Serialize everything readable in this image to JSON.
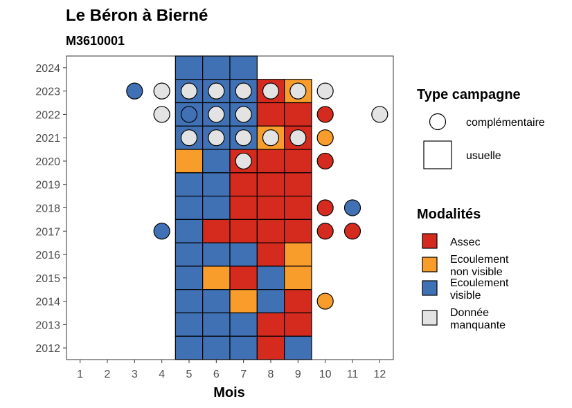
{
  "chart_data": {
    "type": "heatmap",
    "title": "Le Béron à Bierné",
    "subtitle": "M3610001",
    "xlabel": "Mois",
    "ylabel": "",
    "x_ticks": [
      1,
      2,
      3,
      4,
      5,
      6,
      7,
      8,
      9,
      10,
      11,
      12
    ],
    "y_ticks": [
      2012,
      2013,
      2014,
      2015,
      2016,
      2017,
      2018,
      2019,
      2020,
      2021,
      2022,
      2023,
      2024
    ],
    "xlim": [
      0.5,
      12.5
    ],
    "ylim": [
      2011.5,
      2024.5
    ],
    "grid": false,
    "colors": {
      "Assec": "#d52b1e",
      "Ecoulement non visible": "#f89c2c",
      "Ecoulement visible": "#4171b5",
      "Donnée manquante": "#e3e3e3"
    },
    "legend": {
      "position": "right",
      "shape_title": "Type campagne",
      "shape_entries": [
        {
          "shape": "circle",
          "label": "complémentaire"
        },
        {
          "shape": "square",
          "label": "usuelle"
        }
      ],
      "fill_title": "Modalités",
      "fill_entries": [
        {
          "key": "Assec",
          "lines": [
            "Assec"
          ]
        },
        {
          "key": "Ecoulement non visible",
          "lines": [
            "Ecoulement",
            "non visible"
          ]
        },
        {
          "key": "Ecoulement visible",
          "lines": [
            "Ecoulement",
            "visible"
          ]
        },
        {
          "key": "Donnée manquante",
          "lines": [
            "Donnée",
            "manquante"
          ]
        }
      ]
    },
    "usuelle": [
      {
        "year": 2024,
        "month": 5,
        "value": "Ecoulement visible"
      },
      {
        "year": 2024,
        "month": 6,
        "value": "Ecoulement visible"
      },
      {
        "year": 2024,
        "month": 7,
        "value": "Ecoulement visible"
      },
      {
        "year": 2023,
        "month": 5,
        "value": "Ecoulement visible"
      },
      {
        "year": 2023,
        "month": 6,
        "value": "Ecoulement visible"
      },
      {
        "year": 2023,
        "month": 7,
        "value": "Ecoulement visible"
      },
      {
        "year": 2023,
        "month": 8,
        "value": "Assec"
      },
      {
        "year": 2023,
        "month": 9,
        "value": "Ecoulement non visible"
      },
      {
        "year": 2022,
        "month": 5,
        "value": "Ecoulement visible"
      },
      {
        "year": 2022,
        "month": 6,
        "value": "Ecoulement visible"
      },
      {
        "year": 2022,
        "month": 7,
        "value": "Ecoulement visible"
      },
      {
        "year": 2022,
        "month": 8,
        "value": "Assec"
      },
      {
        "year": 2022,
        "month": 9,
        "value": "Assec"
      },
      {
        "year": 2021,
        "month": 5,
        "value": "Ecoulement visible"
      },
      {
        "year": 2021,
        "month": 6,
        "value": "Ecoulement visible"
      },
      {
        "year": 2021,
        "month": 7,
        "value": "Ecoulement visible"
      },
      {
        "year": 2021,
        "month": 8,
        "value": "Ecoulement non visible"
      },
      {
        "year": 2021,
        "month": 9,
        "value": "Assec"
      },
      {
        "year": 2020,
        "month": 5,
        "value": "Ecoulement non visible"
      },
      {
        "year": 2020,
        "month": 6,
        "value": "Ecoulement visible"
      },
      {
        "year": 2020,
        "month": 7,
        "value": "Assec"
      },
      {
        "year": 2020,
        "month": 8,
        "value": "Assec"
      },
      {
        "year": 2020,
        "month": 9,
        "value": "Assec"
      },
      {
        "year": 2019,
        "month": 5,
        "value": "Ecoulement visible"
      },
      {
        "year": 2019,
        "month": 6,
        "value": "Ecoulement visible"
      },
      {
        "year": 2019,
        "month": 7,
        "value": "Assec"
      },
      {
        "year": 2019,
        "month": 8,
        "value": "Assec"
      },
      {
        "year": 2019,
        "month": 9,
        "value": "Assec"
      },
      {
        "year": 2018,
        "month": 5,
        "value": "Ecoulement visible"
      },
      {
        "year": 2018,
        "month": 6,
        "value": "Ecoulement visible"
      },
      {
        "year": 2018,
        "month": 7,
        "value": "Assec"
      },
      {
        "year": 2018,
        "month": 8,
        "value": "Assec"
      },
      {
        "year": 2018,
        "month": 9,
        "value": "Assec"
      },
      {
        "year": 2017,
        "month": 5,
        "value": "Ecoulement visible"
      },
      {
        "year": 2017,
        "month": 6,
        "value": "Assec"
      },
      {
        "year": 2017,
        "month": 7,
        "value": "Assec"
      },
      {
        "year": 2017,
        "month": 8,
        "value": "Assec"
      },
      {
        "year": 2017,
        "month": 9,
        "value": "Assec"
      },
      {
        "year": 2016,
        "month": 5,
        "value": "Ecoulement visible"
      },
      {
        "year": 2016,
        "month": 6,
        "value": "Ecoulement visible"
      },
      {
        "year": 2016,
        "month": 7,
        "value": "Ecoulement visible"
      },
      {
        "year": 2016,
        "month": 8,
        "value": "Assec"
      },
      {
        "year": 2016,
        "month": 9,
        "value": "Ecoulement non visible"
      },
      {
        "year": 2015,
        "month": 5,
        "value": "Ecoulement visible"
      },
      {
        "year": 2015,
        "month": 6,
        "value": "Ecoulement non visible"
      },
      {
        "year": 2015,
        "month": 7,
        "value": "Assec"
      },
      {
        "year": 2015,
        "month": 8,
        "value": "Ecoulement visible"
      },
      {
        "year": 2015,
        "month": 9,
        "value": "Ecoulement non visible"
      },
      {
        "year": 2014,
        "month": 5,
        "value": "Ecoulement visible"
      },
      {
        "year": 2014,
        "month": 6,
        "value": "Ecoulement visible"
      },
      {
        "year": 2014,
        "month": 7,
        "value": "Ecoulement non visible"
      },
      {
        "year": 2014,
        "month": 8,
        "value": "Ecoulement visible"
      },
      {
        "year": 2014,
        "month": 9,
        "value": "Assec"
      },
      {
        "year": 2013,
        "month": 5,
        "value": "Ecoulement visible"
      },
      {
        "year": 2013,
        "month": 6,
        "value": "Ecoulement visible"
      },
      {
        "year": 2013,
        "month": 7,
        "value": "Ecoulement visible"
      },
      {
        "year": 2013,
        "month": 8,
        "value": "Assec"
      },
      {
        "year": 2013,
        "month": 9,
        "value": "Assec"
      },
      {
        "year": 2012,
        "month": 5,
        "value": "Ecoulement visible"
      },
      {
        "year": 2012,
        "month": 6,
        "value": "Ecoulement visible"
      },
      {
        "year": 2012,
        "month": 7,
        "value": "Ecoulement visible"
      },
      {
        "year": 2012,
        "month": 8,
        "value": "Assec"
      },
      {
        "year": 2012,
        "month": 9,
        "value": "Ecoulement visible"
      }
    ],
    "complementaire": [
      {
        "year": 2023,
        "month": 3,
        "value": "Ecoulement visible"
      },
      {
        "year": 2023,
        "month": 4,
        "value": "Donnée manquante"
      },
      {
        "year": 2023,
        "month": 5,
        "value": "Donnée manquante"
      },
      {
        "year": 2023,
        "month": 6,
        "value": "Donnée manquante"
      },
      {
        "year": 2023,
        "month": 7,
        "value": "Donnée manquante"
      },
      {
        "year": 2023,
        "month": 8,
        "value": "Donnée manquante"
      },
      {
        "year": 2023,
        "month": 9,
        "value": "Donnée manquante"
      },
      {
        "year": 2023,
        "month": 10,
        "value": "Donnée manquante"
      },
      {
        "year": 2022,
        "month": 4,
        "value": "Donnée manquante"
      },
      {
        "year": 2022,
        "month": 5,
        "value": "Ecoulement visible"
      },
      {
        "year": 2022,
        "month": 6,
        "value": "Donnée manquante"
      },
      {
        "year": 2022,
        "month": 7,
        "value": "Donnée manquante"
      },
      {
        "year": 2022,
        "month": 10,
        "value": "Assec"
      },
      {
        "year": 2022,
        "month": 12,
        "value": "Donnée manquante"
      },
      {
        "year": 2021,
        "month": 5,
        "value": "Donnée manquante"
      },
      {
        "year": 2021,
        "month": 6,
        "value": "Donnée manquante"
      },
      {
        "year": 2021,
        "month": 7,
        "value": "Donnée manquante"
      },
      {
        "year": 2021,
        "month": 8,
        "value": "Donnée manquante"
      },
      {
        "year": 2021,
        "month": 9,
        "value": "Donnée manquante"
      },
      {
        "year": 2021,
        "month": 10,
        "value": "Ecoulement non visible"
      },
      {
        "year": 2020,
        "month": 7,
        "value": "Donnée manquante"
      },
      {
        "year": 2020,
        "month": 10,
        "value": "Assec"
      },
      {
        "year": 2018,
        "month": 10,
        "value": "Assec"
      },
      {
        "year": 2018,
        "month": 11,
        "value": "Ecoulement visible"
      },
      {
        "year": 2017,
        "month": 4,
        "value": "Ecoulement visible"
      },
      {
        "year": 2017,
        "month": 10,
        "value": "Assec"
      },
      {
        "year": 2017,
        "month": 11,
        "value": "Assec"
      },
      {
        "year": 2014,
        "month": 10,
        "value": "Ecoulement non visible"
      }
    ]
  }
}
